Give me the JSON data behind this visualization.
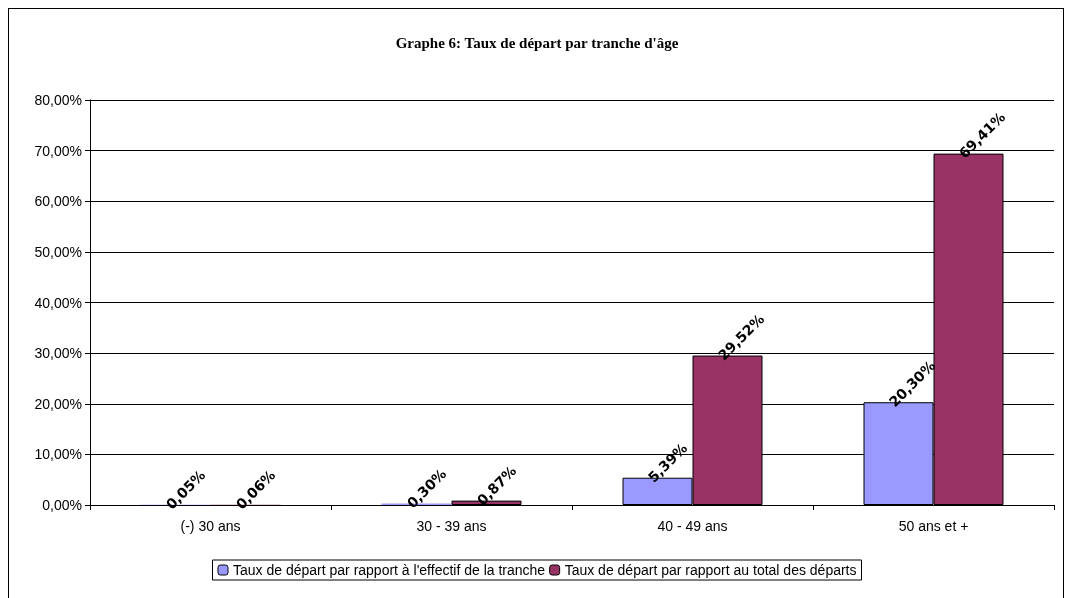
{
  "chart_data": {
    "type": "bar",
    "title": "Graphe 6: Taux de départ par tranche d'âge",
    "categories": [
      "(-) 30 ans",
      "30 - 39 ans",
      "40 - 49 ans",
      "50 ans et +"
    ],
    "series": [
      {
        "name": "Taux de départ par rapport à l'effectif de la tranche",
        "color": "#9999ff",
        "values": [
          0.05,
          0.3,
          5.39,
          20.3
        ],
        "value_labels": [
          "0,05%",
          "0,30%",
          "5,39%",
          "20,30%"
        ]
      },
      {
        "name": "Taux de départ par rapport au total des départs",
        "color": "#993366",
        "values": [
          0.06,
          0.87,
          29.52,
          69.41
        ],
        "value_labels": [
          "0,06%",
          "0,87%",
          "29,52%",
          "69,41%"
        ]
      }
    ],
    "ylim": [
      0,
      80
    ],
    "yticks": [
      {
        "value": 0,
        "label": "0,00%"
      },
      {
        "value": 10,
        "label": "10,00%"
      },
      {
        "value": 20,
        "label": "20,00%"
      },
      {
        "value": 30,
        "label": "30,00%"
      },
      {
        "value": 40,
        "label": "40,00%"
      },
      {
        "value": 50,
        "label": "50,00%"
      },
      {
        "value": 60,
        "label": "60,00%"
      },
      {
        "value": 70,
        "label": "70,00%"
      },
      {
        "value": 80,
        "label": "80,00%"
      }
    ],
    "grid": "y",
    "legend": "bottom"
  }
}
